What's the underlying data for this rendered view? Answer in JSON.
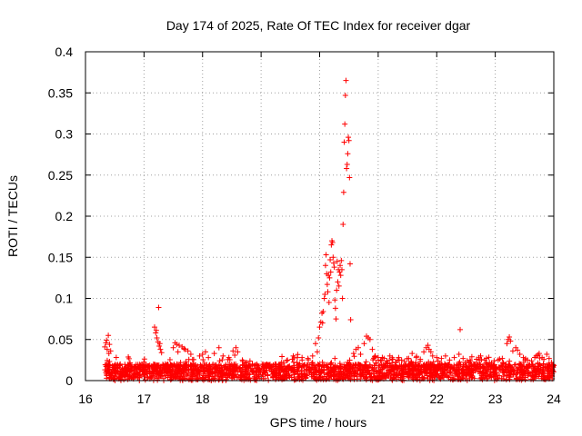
{
  "chart_data": {
    "type": "scatter",
    "title": "Day 174 of 2025, Rate Of TEC Index for receiver dgar",
    "xlabel": "GPS time / hours",
    "ylabel": "ROTI / TECUs",
    "xlim": [
      16,
      24
    ],
    "ylim": [
      0,
      0.4
    ],
    "grid": true,
    "marker": "+",
    "marker_color": "#ff0000",
    "x_ticks": [
      "16",
      "17",
      "18",
      "19",
      "20",
      "21",
      "22",
      "23",
      "24"
    ],
    "y_ticks": [
      "0",
      "0.05",
      "0.1",
      "0.15",
      "0.2",
      "0.25",
      "0.3",
      "0.35",
      "0.4"
    ],
    "series": [
      {
        "name": "ROTI",
        "points": [
          [
            16.33,
            0.041
          ],
          [
            16.35,
            0.046
          ],
          [
            16.37,
            0.038
          ],
          [
            16.39,
            0.055
          ],
          [
            16.41,
            0.044
          ],
          [
            16.43,
            0.036
          ],
          [
            16.36,
            0.049
          ],
          [
            16.4,
            0.033
          ],
          [
            17.18,
            0.065
          ],
          [
            17.2,
            0.058
          ],
          [
            17.22,
            0.052
          ],
          [
            17.24,
            0.047
          ],
          [
            17.26,
            0.042
          ],
          [
            17.28,
            0.038
          ],
          [
            17.25,
            0.089
          ],
          [
            17.21,
            0.061
          ],
          [
            17.27,
            0.045
          ],
          [
            17.3,
            0.034
          ],
          [
            17.5,
            0.04
          ],
          [
            17.53,
            0.046
          ],
          [
            17.56,
            0.044
          ],
          [
            17.6,
            0.043
          ],
          [
            17.65,
            0.041
          ],
          [
            17.7,
            0.038
          ],
          [
            17.75,
            0.036
          ],
          [
            17.8,
            0.032
          ],
          [
            17.58,
            0.035
          ],
          [
            17.68,
            0.039
          ],
          [
            17.95,
            0.03
          ],
          [
            18.0,
            0.032
          ],
          [
            18.05,
            0.035
          ],
          [
            18.1,
            0.028
          ],
          [
            18.2,
            0.033
          ],
          [
            18.28,
            0.04
          ],
          [
            18.35,
            0.03
          ],
          [
            18.45,
            0.028
          ],
          [
            18.52,
            0.036
          ],
          [
            18.57,
            0.04
          ],
          [
            18.6,
            0.035
          ],
          [
            18.55,
            0.031
          ],
          [
            18.68,
            0.025
          ],
          [
            18.75,
            0.022
          ],
          [
            18.85,
            0.02
          ],
          [
            18.95,
            0.018
          ],
          [
            19.05,
            0.017
          ],
          [
            19.15,
            0.018
          ],
          [
            19.25,
            0.02
          ],
          [
            19.35,
            0.022
          ],
          [
            19.45,
            0.025
          ],
          [
            19.55,
            0.03
          ],
          [
            19.62,
            0.028
          ],
          [
            19.7,
            0.025
          ],
          [
            19.8,
            0.027
          ],
          [
            19.88,
            0.03
          ],
          [
            19.93,
            0.045
          ],
          [
            19.96,
            0.035
          ],
          [
            19.98,
            0.052
          ],
          [
            20.0,
            0.065
          ],
          [
            20.02,
            0.071
          ],
          [
            20.04,
            0.082
          ],
          [
            20.05,
            0.07
          ],
          [
            20.06,
            0.084
          ],
          [
            20.08,
            0.1
          ],
          [
            20.09,
            0.105
          ],
          [
            20.1,
            0.14
          ],
          [
            20.11,
            0.153
          ],
          [
            20.12,
            0.13
          ],
          [
            20.13,
            0.117
          ],
          [
            20.14,
            0.108
          ],
          [
            20.15,
            0.128
          ],
          [
            20.16,
            0.095
          ],
          [
            20.17,
            0.125
          ],
          [
            20.18,
            0.147
          ],
          [
            20.19,
            0.132
          ],
          [
            20.2,
            0.165
          ],
          [
            20.21,
            0.17
          ],
          [
            20.22,
            0.168
          ],
          [
            20.23,
            0.15
          ],
          [
            20.24,
            0.143
          ],
          [
            20.25,
            0.138
          ],
          [
            20.26,
            0.098
          ],
          [
            20.27,
            0.088
          ],
          [
            20.28,
            0.075
          ],
          [
            20.29,
            0.11
          ],
          [
            20.3,
            0.145
          ],
          [
            20.31,
            0.12
          ],
          [
            20.32,
            0.135
          ],
          [
            20.33,
            0.115
          ],
          [
            20.34,
            0.132
          ],
          [
            20.35,
            0.14
          ],
          [
            20.36,
            0.128
          ],
          [
            20.37,
            0.146
          ],
          [
            20.38,
            0.135
          ],
          [
            20.39,
            0.1
          ],
          [
            20.4,
            0.19
          ],
          [
            20.41,
            0.229
          ],
          [
            20.42,
            0.29
          ],
          [
            20.43,
            0.312
          ],
          [
            20.44,
            0.347
          ],
          [
            20.45,
            0.365
          ],
          [
            20.46,
            0.258
          ],
          [
            20.47,
            0.263
          ],
          [
            20.48,
            0.276
          ],
          [
            20.49,
            0.296
          ],
          [
            20.5,
            0.292
          ],
          [
            20.51,
            0.247
          ],
          [
            20.52,
            0.142
          ],
          [
            20.53,
            0.074
          ],
          [
            20.58,
            0.033
          ],
          [
            20.62,
            0.038
          ],
          [
            20.66,
            0.04
          ],
          [
            20.7,
            0.032
          ],
          [
            20.76,
            0.045
          ],
          [
            20.8,
            0.054
          ],
          [
            20.83,
            0.052
          ],
          [
            20.86,
            0.05
          ],
          [
            20.9,
            0.038
          ],
          [
            20.95,
            0.03
          ],
          [
            21.0,
            0.028
          ],
          [
            21.05,
            0.025
          ],
          [
            21.1,
            0.027
          ],
          [
            21.15,
            0.024
          ],
          [
            21.2,
            0.03
          ],
          [
            21.25,
            0.026
          ],
          [
            21.3,
            0.022
          ],
          [
            21.35,
            0.028
          ],
          [
            21.4,
            0.025
          ],
          [
            21.45,
            0.023
          ],
          [
            21.52,
            0.027
          ],
          [
            21.58,
            0.033
          ],
          [
            21.65,
            0.028
          ],
          [
            21.72,
            0.026
          ],
          [
            21.78,
            0.035
          ],
          [
            21.82,
            0.04
          ],
          [
            21.85,
            0.043
          ],
          [
            21.87,
            0.038
          ],
          [
            21.9,
            0.035
          ],
          [
            21.93,
            0.03
          ],
          [
            22.0,
            0.028
          ],
          [
            22.08,
            0.027
          ],
          [
            22.15,
            0.03
          ],
          [
            22.22,
            0.025
          ],
          [
            22.3,
            0.028
          ],
          [
            22.38,
            0.032
          ],
          [
            22.45,
            0.027
          ],
          [
            22.52,
            0.024
          ],
          [
            22.6,
            0.029
          ],
          [
            22.68,
            0.026
          ],
          [
            22.75,
            0.03
          ],
          [
            22.82,
            0.025
          ],
          [
            22.9,
            0.022
          ],
          [
            22.98,
            0.024
          ],
          [
            22.4,
            0.062
          ],
          [
            23.05,
            0.025
          ],
          [
            23.12,
            0.027
          ],
          [
            23.2,
            0.045
          ],
          [
            23.22,
            0.05
          ],
          [
            23.24,
            0.053
          ],
          [
            23.26,
            0.048
          ],
          [
            23.3,
            0.036
          ],
          [
            23.35,
            0.04
          ],
          [
            23.38,
            0.037
          ],
          [
            23.42,
            0.032
          ],
          [
            23.48,
            0.028
          ],
          [
            23.55,
            0.025
          ],
          [
            23.62,
            0.024
          ],
          [
            23.7,
            0.03
          ],
          [
            23.75,
            0.033
          ],
          [
            23.8,
            0.028
          ],
          [
            23.88,
            0.032
          ],
          [
            23.92,
            0.027
          ],
          [
            23.96,
            0.022
          ],
          [
            23.99,
            0.018
          ]
        ]
      }
    ],
    "dense_band": {
      "description": "many low-value points filling the range",
      "x_range": [
        16.33,
        24.0
      ],
      "y_range": [
        0.0,
        0.02
      ],
      "count": 2200
    }
  }
}
